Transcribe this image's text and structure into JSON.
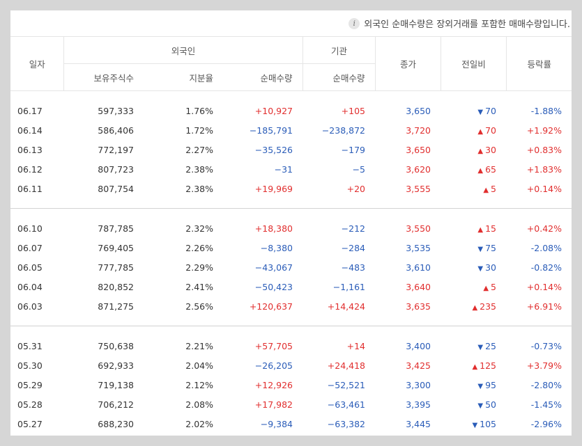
{
  "notice": "외국인 순매수량은 장외거래를 포함한 매매수량입니다.",
  "headers": {
    "date": "일자",
    "foreign": "외국인",
    "institution": "기관",
    "close": "종가",
    "change": "전일비",
    "rate": "등락률",
    "holdings": "보유주식수",
    "ratio": "지분율",
    "foreign_net": "순매수량",
    "inst_net": "순매수량"
  },
  "colors": {
    "up": "#e12e2e",
    "down": "#2a5cb8"
  },
  "groups": [
    [
      {
        "date": "06.17",
        "holdings": "597,333",
        "ratio": "1.76%",
        "foreign_net": "+10,927",
        "inst_net": "+105",
        "close": "3,650",
        "dir": "down",
        "change": "70",
        "rate": "-1.88%"
      },
      {
        "date": "06.14",
        "holdings": "586,406",
        "ratio": "1.72%",
        "foreign_net": "−185,791",
        "inst_net": "−238,872",
        "close": "3,720",
        "dir": "up",
        "change": "70",
        "rate": "+1.92%"
      },
      {
        "date": "06.13",
        "holdings": "772,197",
        "ratio": "2.27%",
        "foreign_net": "−35,526",
        "inst_net": "−179",
        "close": "3,650",
        "dir": "up",
        "change": "30",
        "rate": "+0.83%"
      },
      {
        "date": "06.12",
        "holdings": "807,723",
        "ratio": "2.38%",
        "foreign_net": "−31",
        "inst_net": "−5",
        "close": "3,620",
        "dir": "up",
        "change": "65",
        "rate": "+1.83%"
      },
      {
        "date": "06.11",
        "holdings": "807,754",
        "ratio": "2.38%",
        "foreign_net": "+19,969",
        "inst_net": "+20",
        "close": "3,555",
        "dir": "up",
        "change": "5",
        "rate": "+0.14%"
      }
    ],
    [
      {
        "date": "06.10",
        "holdings": "787,785",
        "ratio": "2.32%",
        "foreign_net": "+18,380",
        "inst_net": "−212",
        "close": "3,550",
        "dir": "up",
        "change": "15",
        "rate": "+0.42%"
      },
      {
        "date": "06.07",
        "holdings": "769,405",
        "ratio": "2.26%",
        "foreign_net": "−8,380",
        "inst_net": "−284",
        "close": "3,535",
        "dir": "down",
        "change": "75",
        "rate": "-2.08%"
      },
      {
        "date": "06.05",
        "holdings": "777,785",
        "ratio": "2.29%",
        "foreign_net": "−43,067",
        "inst_net": "−483",
        "close": "3,610",
        "dir": "down",
        "change": "30",
        "rate": "-0.82%"
      },
      {
        "date": "06.04",
        "holdings": "820,852",
        "ratio": "2.41%",
        "foreign_net": "−50,423",
        "inst_net": "−1,161",
        "close": "3,640",
        "dir": "up",
        "change": "5",
        "rate": "+0.14%"
      },
      {
        "date": "06.03",
        "holdings": "871,275",
        "ratio": "2.56%",
        "foreign_net": "+120,637",
        "inst_net": "+14,424",
        "close": "3,635",
        "dir": "up",
        "change": "235",
        "rate": "+6.91%"
      }
    ],
    [
      {
        "date": "05.31",
        "holdings": "750,638",
        "ratio": "2.21%",
        "foreign_net": "+57,705",
        "inst_net": "+14",
        "close": "3,400",
        "dir": "down",
        "change": "25",
        "rate": "-0.73%"
      },
      {
        "date": "05.30",
        "holdings": "692,933",
        "ratio": "2.04%",
        "foreign_net": "−26,205",
        "inst_net": "+24,418",
        "close": "3,425",
        "dir": "up",
        "change": "125",
        "rate": "+3.79%"
      },
      {
        "date": "05.29",
        "holdings": "719,138",
        "ratio": "2.12%",
        "foreign_net": "+12,926",
        "inst_net": "−52,521",
        "close": "3,300",
        "dir": "down",
        "change": "95",
        "rate": "-2.80%"
      },
      {
        "date": "05.28",
        "holdings": "706,212",
        "ratio": "2.08%",
        "foreign_net": "+17,982",
        "inst_net": "−63,461",
        "close": "3,395",
        "dir": "down",
        "change": "50",
        "rate": "-1.45%"
      },
      {
        "date": "05.27",
        "holdings": "688,230",
        "ratio": "2.02%",
        "foreign_net": "−9,384",
        "inst_net": "−63,382",
        "close": "3,445",
        "dir": "down",
        "change": "105",
        "rate": "-2.96%"
      }
    ]
  ]
}
